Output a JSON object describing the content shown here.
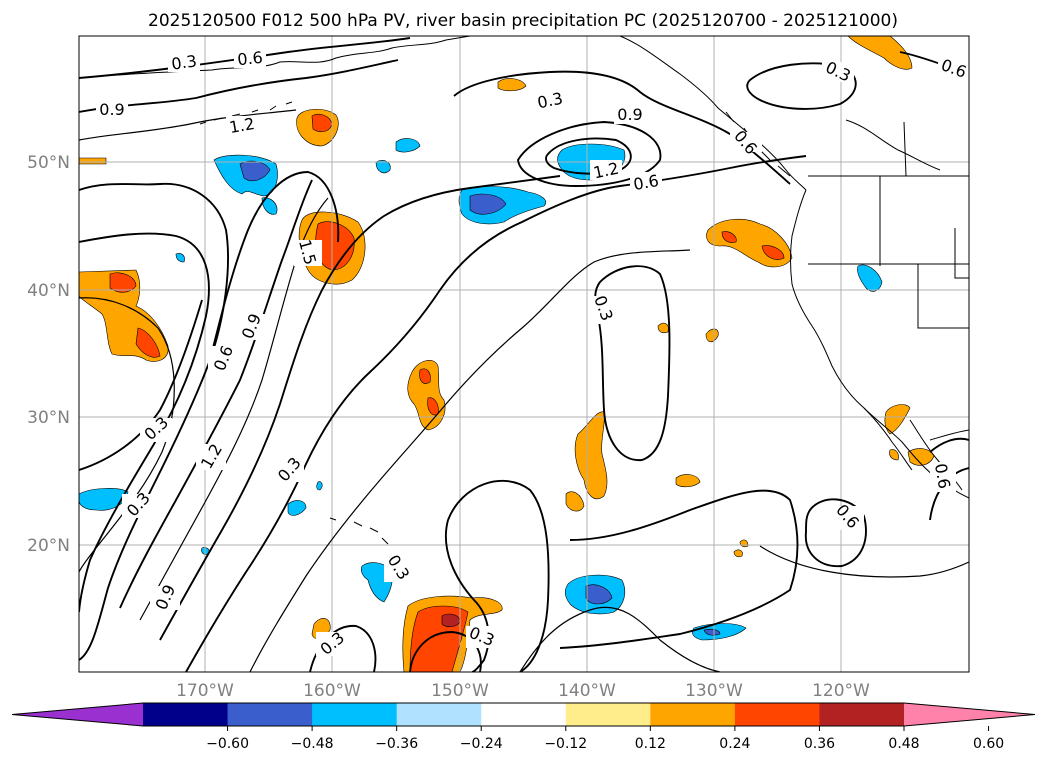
{
  "title": "2025120500 F012 500 hPa PV, river basin precipitation PC (2025120700 - 2025121000)",
  "latitude_labels": [
    "50°N",
    "40°N",
    "30°N",
    "20°N"
  ],
  "longitude_labels": [
    "170°W",
    "160°W",
    "150°W",
    "140°W",
    "130°W",
    "120°W"
  ],
  "colorbar": {
    "ticks": [
      "−0.60",
      "−0.48",
      "−0.36",
      "−0.24",
      "−0.12",
      "0.12",
      "0.24",
      "0.36",
      "0.48",
      "0.60"
    ],
    "colors": [
      "#9b30d0",
      "#00008b",
      "#3a5fcd",
      "#00bfff",
      "#b0e2ff",
      "#ffffff",
      "#ffec8b",
      "#ffa500",
      "#ff4500",
      "#b22222",
      "#ff82ab"
    ]
  },
  "contour_labels": [
    "0.3",
    "0.6",
    "0.6",
    "0.9",
    "1.2",
    "0.3",
    "0.9",
    "1.2",
    "0.6",
    "0.3",
    "0.6",
    "1.5",
    "0.6",
    "0.9",
    "0.3",
    "1.2",
    "0.3",
    "0.3",
    "0.3",
    "0.9",
    "0.3",
    "0.3",
    "0.3",
    "0.6",
    "0.6"
  ],
  "colors": {
    "contour": "#000000",
    "coast": "#000000",
    "grid": "#b0b0b0"
  }
}
